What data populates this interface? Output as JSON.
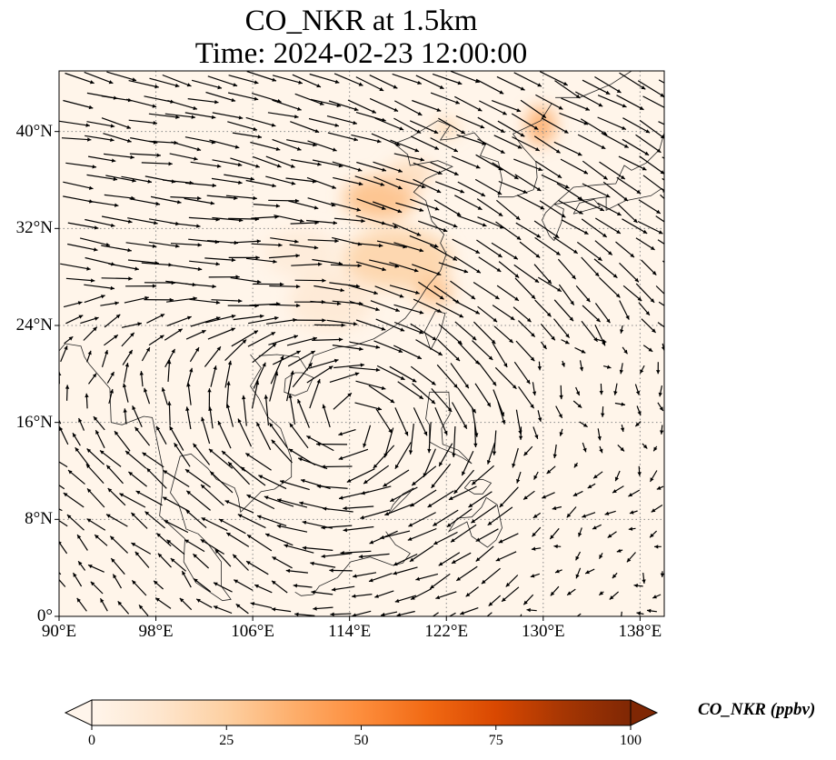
{
  "title": {
    "line1": "CO_NKR at 1.5km",
    "line2": "Time: 2024-02-23 12:00:00"
  },
  "map": {
    "lon_range": [
      90,
      140
    ],
    "lat_range": [
      0,
      45
    ],
    "background_color": "#fff5ea",
    "lat_ticks": [
      {
        "value": 0,
        "label": "0°"
      },
      {
        "value": 8,
        "label": "8°N"
      },
      {
        "value": 16,
        "label": "16°N"
      },
      {
        "value": 24,
        "label": "24°N"
      },
      {
        "value": 32,
        "label": "32°N"
      },
      {
        "value": 40,
        "label": "40°N"
      }
    ],
    "lon_ticks": [
      {
        "value": 90,
        "label": "90°E"
      },
      {
        "value": 98,
        "label": "98°E"
      },
      {
        "value": 106,
        "label": "106°E"
      },
      {
        "value": 114,
        "label": "114°E"
      },
      {
        "value": 122,
        "label": "122°E"
      },
      {
        "value": 130,
        "label": "130°E"
      },
      {
        "value": 138,
        "label": "138°E"
      }
    ],
    "gridlines": "dotted",
    "plume_regions": [
      {
        "lon": 116.5,
        "lat": 34.5,
        "rlon": 3.0,
        "rlat": 1.8,
        "value": 32
      },
      {
        "lon": 118.0,
        "lat": 29.5,
        "rlon": 4.5,
        "rlat": 2.5,
        "value": 24
      },
      {
        "lon": 121.0,
        "lat": 26.8,
        "rlon": 1.6,
        "rlat": 1.2,
        "value": 30
      },
      {
        "lon": 129.8,
        "lat": 40.5,
        "rlon": 1.2,
        "rlat": 1.6,
        "value": 40
      },
      {
        "lon": 122.0,
        "lat": 40.3,
        "rlon": 1.0,
        "rlat": 0.7,
        "value": 25
      },
      {
        "lon": 119.0,
        "lat": 36.5,
        "rlon": 2.0,
        "rlat": 1.2,
        "value": 18
      },
      {
        "lon": 112.5,
        "lat": 26.0,
        "rlon": 3.5,
        "rlat": 2.5,
        "value": 10
      },
      {
        "lon": 110.0,
        "lat": 30.0,
        "rlon": 3.0,
        "rlat": 2.0,
        "value": 8
      }
    ],
    "wind_field": {
      "description": "quiver arrows of horizontal wind at 1.5 km",
      "grid_spacing_deg": 1.7
    }
  },
  "colorbar": {
    "label": "CO_NKR (ppbv)",
    "min": 0,
    "max": 100,
    "extend": "both",
    "colormap": [
      "#fff5eb",
      "#fee6ce",
      "#fdd0a2",
      "#fdae6b",
      "#fd8d3c",
      "#f16913",
      "#d94801",
      "#a63603",
      "#7f2704"
    ],
    "ticks": [
      {
        "value": 0,
        "label": "0"
      },
      {
        "value": 25,
        "label": "25"
      },
      {
        "value": 50,
        "label": "50"
      },
      {
        "value": 75,
        "label": "75"
      },
      {
        "value": 100,
        "label": "100"
      }
    ]
  }
}
